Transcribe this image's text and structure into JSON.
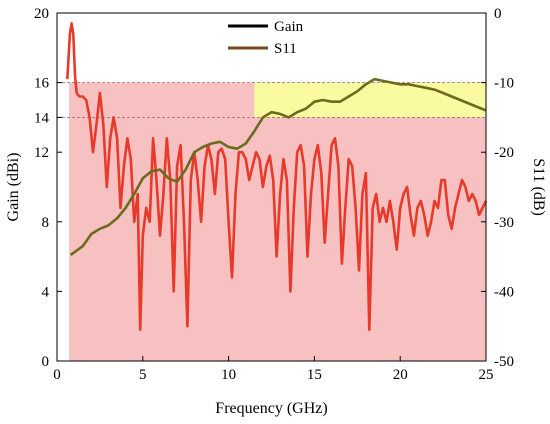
{
  "chart_data": {
    "type": "line",
    "xlabel": "Frequency (GHz)",
    "ylabel_left": "Gain (dBi)",
    "ylabel_right": "S11 (dB)",
    "xlim": [
      0,
      25
    ],
    "ylim_left": [
      0,
      20
    ],
    "ylim_right": [
      -50,
      0
    ],
    "x_ticks": [
      0,
      5,
      10,
      15,
      20,
      25
    ],
    "y_ticks_left": [
      0,
      4,
      8,
      12,
      14,
      16,
      20
    ],
    "y_ticks_right": [
      0,
      -10,
      -20,
      -30,
      -40,
      -50
    ],
    "legend_position": "top-center",
    "colors": {
      "gain": "#6b6b1e",
      "s11": "#e83a2a",
      "legend_gain": "#000000",
      "legend_s11": "#7a4a1a",
      "pink_band": "#f7c1c1",
      "yellow_band": "#fafaa0",
      "ref_line": "#a06060"
    },
    "shaded_regions": [
      {
        "x": [
          0.7,
          25
        ],
        "y_left": [
          0,
          16
        ],
        "color": "pink"
      },
      {
        "x": [
          11.5,
          25
        ],
        "y_left": [
          14,
          16
        ],
        "color": "yellow"
      }
    ],
    "reference_lines_left": [
      14,
      16
    ],
    "series": [
      {
        "name": "Gain",
        "axis": "left",
        "x": [
          0.8,
          1.5,
          2.0,
          2.5,
          3.0,
          3.5,
          4.0,
          4.5,
          5.0,
          5.5,
          6.0,
          6.5,
          7.0,
          7.5,
          8.0,
          8.5,
          9.0,
          9.5,
          10.0,
          10.5,
          11.0,
          11.5,
          12.0,
          12.5,
          13.0,
          13.5,
          14.0,
          14.5,
          15.0,
          15.5,
          16.0,
          16.5,
          17.0,
          17.5,
          18.0,
          18.5,
          19.0,
          19.5,
          20.0,
          20.5,
          21.0,
          21.5,
          22.0,
          22.5,
          23.0,
          23.5,
          24.0,
          24.5,
          25.0
        ],
        "y": [
          6.1,
          6.6,
          7.3,
          7.6,
          7.8,
          8.2,
          8.8,
          9.6,
          10.5,
          10.9,
          11.0,
          10.5,
          10.3,
          11.0,
          12.0,
          12.3,
          12.5,
          12.6,
          12.3,
          12.2,
          12.5,
          13.2,
          14.0,
          14.3,
          14.2,
          14.0,
          14.3,
          14.5,
          14.9,
          15.0,
          14.9,
          14.9,
          15.2,
          15.5,
          15.9,
          16.2,
          16.1,
          16.0,
          15.9,
          15.9,
          15.8,
          15.7,
          15.6,
          15.4,
          15.2,
          15.0,
          14.8,
          14.6,
          14.4
        ]
      },
      {
        "name": "S11",
        "axis": "right",
        "x": [
          0.6,
          0.75,
          0.85,
          0.95,
          1.05,
          1.15,
          1.3,
          1.5,
          1.7,
          1.9,
          2.1,
          2.3,
          2.5,
          2.7,
          2.9,
          3.1,
          3.3,
          3.5,
          3.7,
          3.9,
          4.1,
          4.3,
          4.5,
          4.7,
          4.85,
          5.0,
          5.2,
          5.4,
          5.6,
          5.8,
          6.0,
          6.2,
          6.4,
          6.6,
          6.8,
          7.0,
          7.2,
          7.4,
          7.6,
          7.8,
          8.0,
          8.2,
          8.4,
          8.6,
          8.8,
          9.0,
          9.2,
          9.4,
          9.6,
          9.8,
          10.0,
          10.2,
          10.4,
          10.6,
          10.8,
          11.0,
          11.2,
          11.4,
          11.6,
          11.8,
          12.0,
          12.2,
          12.4,
          12.6,
          12.8,
          13.0,
          13.2,
          13.4,
          13.6,
          13.8,
          14.0,
          14.2,
          14.4,
          14.6,
          14.8,
          15.0,
          15.2,
          15.4,
          15.6,
          15.8,
          16.0,
          16.2,
          16.4,
          16.6,
          16.8,
          17.0,
          17.2,
          17.4,
          17.6,
          17.8,
          18.0,
          18.2,
          18.4,
          18.6,
          18.8,
          19.0,
          19.2,
          19.4,
          19.6,
          19.8,
          20.0,
          20.2,
          20.4,
          20.6,
          20.8,
          21.0,
          21.2,
          21.4,
          21.6,
          21.8,
          22.0,
          22.2,
          22.4,
          22.6,
          22.8,
          23.0,
          23.2,
          23.4,
          23.6,
          23.8,
          24.0,
          24.2,
          24.4,
          24.6,
          24.8,
          25.0
        ],
        "y": [
          -9.5,
          -3.0,
          -1.5,
          -3.0,
          -9.0,
          -11.5,
          -12.0,
          -12.0,
          -12.5,
          -15.0,
          -20.0,
          -16.0,
          -11.5,
          -16.0,
          -25.0,
          -18.0,
          -15.0,
          -18.0,
          -28.0,
          -22.0,
          -18.0,
          -21.0,
          -30.0,
          -26.0,
          -45.5,
          -32.0,
          -28.0,
          -30.0,
          -18.0,
          -24.0,
          -32.0,
          -26.0,
          -18.0,
          -24.0,
          -40.0,
          -22.0,
          -19.0,
          -30.0,
          -45.0,
          -24.0,
          -20.0,
          -24.0,
          -30.0,
          -22.0,
          -19.0,
          -21.0,
          -26.0,
          -20.0,
          -19.5,
          -21.0,
          -30.0,
          -38.0,
          -26.0,
          -20.0,
          -20.0,
          -21.0,
          -24.0,
          -22.0,
          -20.0,
          -21.0,
          -25.0,
          -22.0,
          -20.5,
          -24.0,
          -35.0,
          -26.0,
          -21.0,
          -24.0,
          -40.0,
          -28.0,
          -20.0,
          -19.0,
          -22.0,
          -35.0,
          -26.0,
          -21.0,
          -19.0,
          -23.0,
          -33.0,
          -26.0,
          -19.0,
          -18.0,
          -22.0,
          -36.0,
          -28.0,
          -21.0,
          -22.0,
          -28.0,
          -37.0,
          -26.0,
          -23.0,
          -45.5,
          -28.0,
          -26.0,
          -30.0,
          -28.0,
          -30.0,
          -27.0,
          -30.0,
          -34.0,
          -28.0,
          -26.0,
          -25.0,
          -29.0,
          -32.0,
          -28.0,
          -27.0,
          -29.0,
          -32.0,
          -30.0,
          -27.0,
          -28.0,
          -24.0,
          -24.0,
          -29.0,
          -31.0,
          -28.0,
          -26.0,
          -24.0,
          -25.0,
          -27.0,
          -26.0,
          -27.0,
          -29.0,
          -28.0,
          -27.0
        ]
      }
    ]
  }
}
